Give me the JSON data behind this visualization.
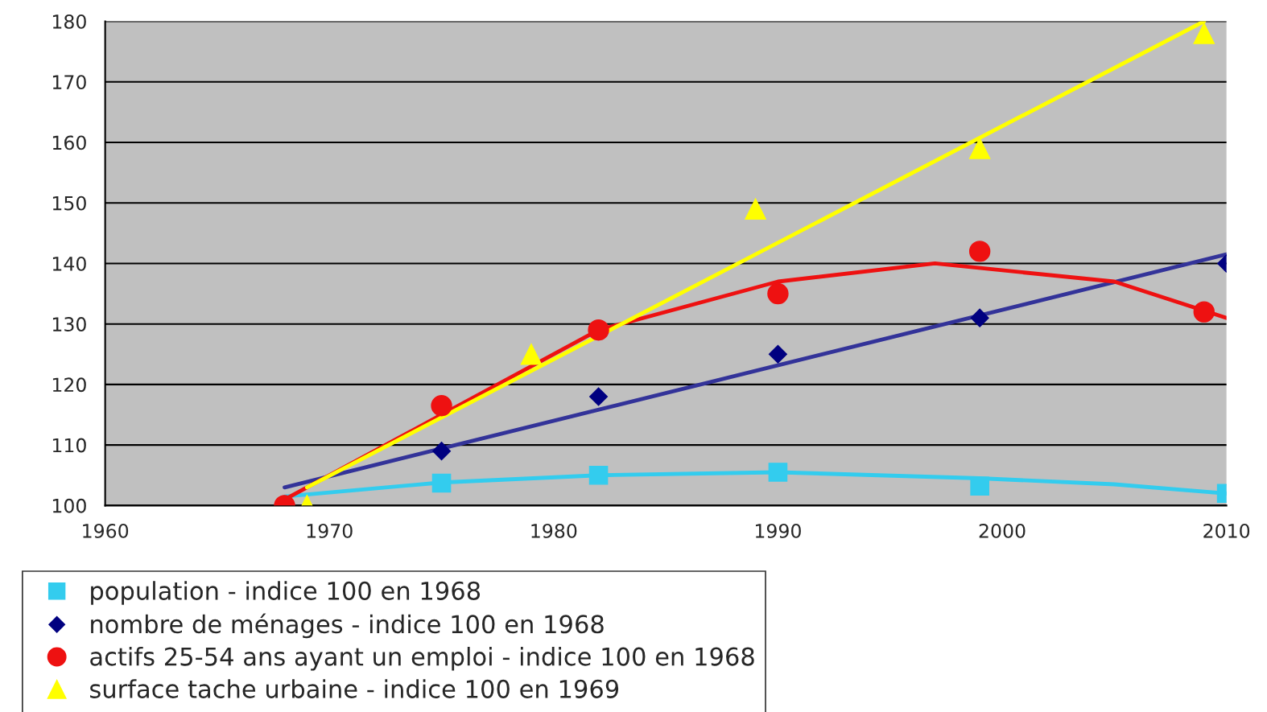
{
  "chart_data": {
    "type": "scatter",
    "xlim": [
      1960,
      2010
    ],
    "ylim": [
      100,
      180
    ],
    "xticks": [
      1960,
      1970,
      1980,
      1990,
      2000,
      2010
    ],
    "yticks": [
      100,
      110,
      120,
      130,
      140,
      150,
      160,
      170,
      180
    ],
    "grid": "y",
    "legend": "bottom left",
    "series": [
      {
        "name": "population - indice 100 en 1968",
        "color": "#33ccee",
        "marker": "square",
        "x": [
          1975,
          1982,
          1990,
          1999,
          2010
        ],
        "values": [
          103.7,
          105,
          105.5,
          103.2,
          102
        ]
      },
      {
        "name": "nombre de ménages - indice 100 en 1968",
        "color": "#000080",
        "marker": "diamond",
        "x": [
          1975,
          1982,
          1990,
          1999,
          2010
        ],
        "values": [
          109,
          118,
          125,
          131,
          140
        ]
      },
      {
        "name": "actifs 25-54 ans ayant un emploi - indice 100 en 1968",
        "color": "#ee1111",
        "marker": "circle",
        "x": [
          1968,
          1975,
          1982,
          1990,
          1999,
          2009
        ],
        "values": [
          100,
          116.5,
          129,
          135,
          142,
          132
        ]
      },
      {
        "name": "surface tache urbaine - indice 100 en 1969",
        "color": "#ffff00",
        "marker": "triangle",
        "x": [
          1969,
          1979,
          1989,
          1999,
          2009
        ],
        "values": [
          100,
          125,
          149,
          159,
          178
        ]
      },
      {
        "type": "line",
        "color": "#33ccee",
        "marker": "none",
        "x": [
          1968,
          1975,
          1982,
          1990,
          1999,
          2005,
          2010
        ],
        "values": [
          101.5,
          103.8,
          105,
          105.5,
          104.5,
          103.5,
          102
        ]
      },
      {
        "type": "line",
        "color": "#333399",
        "marker": "none",
        "x": [
          1968,
          2010
        ],
        "values": [
          103,
          141.5
        ]
      },
      {
        "type": "line",
        "color": "#ee1111",
        "marker": "none",
        "x": [
          1968,
          1975,
          1982,
          1990,
          1997,
          2005,
          2010
        ],
        "values": [
          101,
          115,
          129,
          137,
          140,
          137,
          131
        ]
      },
      {
        "type": "line",
        "color": "#ffff00",
        "marker": "none",
        "x": [
          1969,
          2009
        ],
        "values": [
          103,
          180
        ]
      }
    ]
  }
}
